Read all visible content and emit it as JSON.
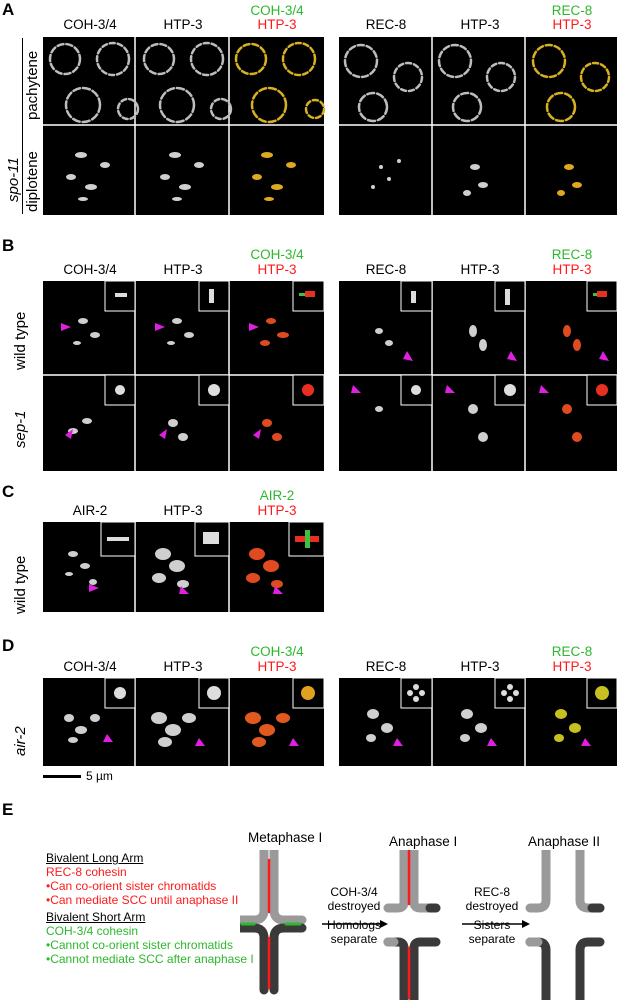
{
  "panels": {
    "A": {
      "letter": "A",
      "left_cols": [
        "COH-3/4",
        "HTP-3"
      ],
      "left_merge": {
        "green": "COH-3/4",
        "red": "HTP-3"
      },
      "right_cols": [
        "REC-8",
        "HTP-3"
      ],
      "right_merge": {
        "green": "REC-8",
        "red": "HTP-3"
      },
      "genotype": "spo-11",
      "rows": [
        "pachytene",
        "diplotene"
      ]
    },
    "B": {
      "letter": "B",
      "left_cols": [
        "COH-3/4",
        "HTP-3"
      ],
      "left_merge": {
        "green": "COH-3/4",
        "red": "HTP-3"
      },
      "right_cols": [
        "REC-8",
        "HTP-3"
      ],
      "right_merge": {
        "green": "REC-8",
        "red": "HTP-3"
      },
      "rows": [
        "wild type",
        "sep-1"
      ]
    },
    "C": {
      "letter": "C",
      "cols": [
        "AIR-2",
        "HTP-3"
      ],
      "merge": {
        "green": "AIR-2",
        "red": "HTP-3"
      },
      "rows": [
        "wild type"
      ]
    },
    "D": {
      "letter": "D",
      "left_cols": [
        "COH-3/4",
        "HTP-3"
      ],
      "left_merge": {
        "green": "COH-3/4",
        "red": "HTP-3"
      },
      "right_cols": [
        "REC-8",
        "HTP-3"
      ],
      "right_merge": {
        "green": "REC-8",
        "red": "HTP-3"
      },
      "rows": [
        "air-2"
      ],
      "scale_bar": "5 µm"
    },
    "E": {
      "letter": "E",
      "long_arm_title": "Bivalent Long Arm",
      "long_arm_cohesin": "REC-8 cohesin",
      "long_arm_points": [
        "•Can co-orient sister chromatids",
        "•Can mediate SCC until anaphase II"
      ],
      "short_arm_title": "Bivalent Short Arm",
      "short_arm_cohesin": "COH-3/4 cohesin",
      "short_arm_points": [
        "•Cannot co-orient sister chromatids",
        "•Cannot mediate SCC after anaphase I"
      ],
      "stages": [
        "Metaphase I",
        "Anaphase I",
        "Anaphase II"
      ],
      "arrow1_top": "COH-3/4",
      "arrow1_top2": "destroyed",
      "arrow1_bottom": "Homologs",
      "arrow1_bottom2": "separate",
      "arrow2_top": "REC-8",
      "arrow2_top2": "destroyed",
      "arrow2_bottom": "Sisters",
      "arrow2_bottom2": "separate"
    }
  },
  "colors": {
    "green": "#2db82d",
    "red": "#ff1a1a",
    "magenta": "#e020e0",
    "light_gray": "#9a9a9a",
    "dark_gray": "#3a3a3a"
  }
}
